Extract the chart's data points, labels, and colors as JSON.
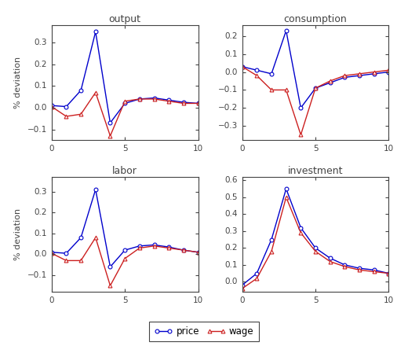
{
  "x": [
    0,
    1,
    2,
    3,
    4,
    5,
    6,
    7,
    8,
    9,
    10
  ],
  "output": {
    "price": [
      0.01,
      0.005,
      0.08,
      0.35,
      -0.07,
      0.02,
      0.04,
      0.045,
      0.035,
      0.025,
      0.02
    ],
    "wage": [
      0.005,
      -0.04,
      -0.03,
      0.07,
      -0.13,
      0.03,
      0.04,
      0.04,
      0.03,
      0.02,
      0.02
    ]
  },
  "consumption": {
    "price": [
      0.03,
      0.01,
      -0.01,
      0.23,
      -0.2,
      -0.09,
      -0.06,
      -0.03,
      -0.02,
      -0.01,
      0.0
    ],
    "wage": [
      0.03,
      -0.02,
      -0.1,
      -0.1,
      -0.35,
      -0.09,
      -0.05,
      -0.02,
      -0.01,
      0.0,
      0.01
    ]
  },
  "labor": {
    "price": [
      0.01,
      0.005,
      0.08,
      0.31,
      -0.06,
      0.02,
      0.04,
      0.045,
      0.035,
      0.02,
      0.01
    ],
    "wage": [
      0.005,
      -0.03,
      -0.03,
      0.08,
      -0.15,
      -0.02,
      0.03,
      0.04,
      0.03,
      0.02,
      0.01
    ]
  },
  "investment": {
    "price": [
      -0.02,
      0.05,
      0.25,
      0.55,
      0.32,
      0.2,
      0.14,
      0.1,
      0.08,
      0.07,
      0.05
    ],
    "wage": [
      -0.04,
      0.02,
      0.18,
      0.5,
      0.29,
      0.18,
      0.12,
      0.09,
      0.07,
      0.06,
      0.05
    ]
  },
  "titles": [
    "output",
    "consumption",
    "labor",
    "investment"
  ],
  "price_color": "#0000cc",
  "wage_color": "#cc2020",
  "ylabel": "% deviation",
  "xlim": [
    0,
    10
  ],
  "xticks": [
    0,
    5,
    10
  ],
  "output_ylim": [
    -0.15,
    0.38
  ],
  "consumption_ylim": [
    -0.38,
    0.26
  ],
  "labor_ylim": [
    -0.18,
    0.37
  ],
  "investment_ylim": [
    -0.06,
    0.62
  ],
  "figsize": [
    5.2,
    4.4
  ],
  "dpi": 100
}
